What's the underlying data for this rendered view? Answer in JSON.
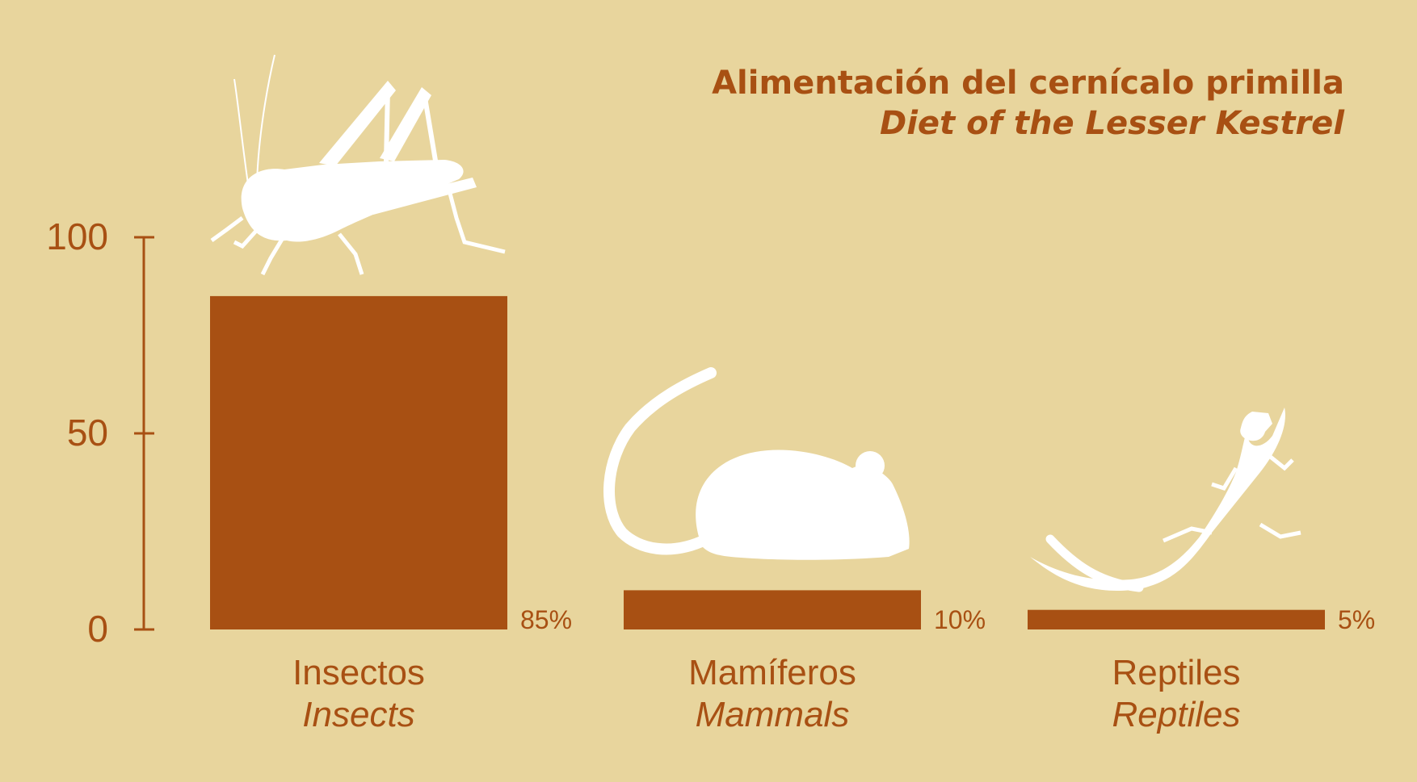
{
  "title": "Alimentación del cernícalo primilla",
  "subtitle": "Diet of the Lesser Kestrel",
  "colors": {
    "background": "#e8d59d",
    "bar": "#a85013",
    "text": "#a85013",
    "silhouette": "#ffffff"
  },
  "chart_data": {
    "type": "bar",
    "title": "Alimentación del cernícalo primilla",
    "subtitle": "Diet of the Lesser Kestrel",
    "categories": [
      "Insectos",
      "Mamíferos",
      "Reptiles"
    ],
    "categories_en": [
      "Insects",
      "Mammals",
      "Reptiles"
    ],
    "values": [
      85,
      10,
      5
    ],
    "value_labels": [
      "85%",
      "10%",
      "5%"
    ],
    "icons": [
      "grasshopper-icon",
      "mouse-icon",
      "lizard-icon"
    ],
    "ylim": [
      0,
      100
    ],
    "yticks": [
      0,
      50,
      100
    ],
    "ytick_labels": [
      "0",
      "50",
      "100"
    ],
    "xlabel": "",
    "ylabel": "",
    "grid": false,
    "legend": "none"
  }
}
